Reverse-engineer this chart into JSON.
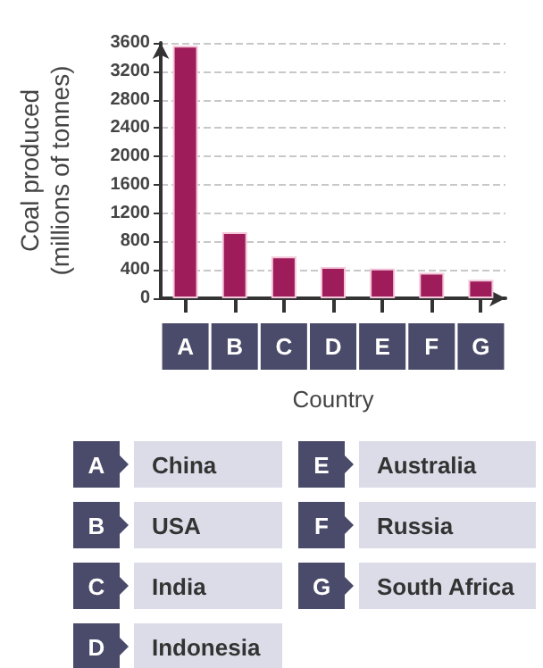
{
  "chart_data": {
    "type": "bar",
    "xlabel": "Country",
    "ylabel": "Coal produced\n(millions of tonnes)",
    "categories": [
      "A",
      "B",
      "C",
      "D",
      "E",
      "F",
      "G"
    ],
    "values": [
      3560,
      930,
      590,
      440,
      420,
      360,
      260
    ],
    "color": "#9e1c5a",
    "ylim": [
      0,
      3600
    ],
    "yticks": [
      0,
      400,
      800,
      1200,
      1600,
      2000,
      2400,
      2800,
      3200,
      3600
    ],
    "grid": "y",
    "annotations": [
      "China",
      "USA",
      "India",
      "Indonesia",
      "Australia",
      "Russia",
      "South Africa"
    ]
  }
}
